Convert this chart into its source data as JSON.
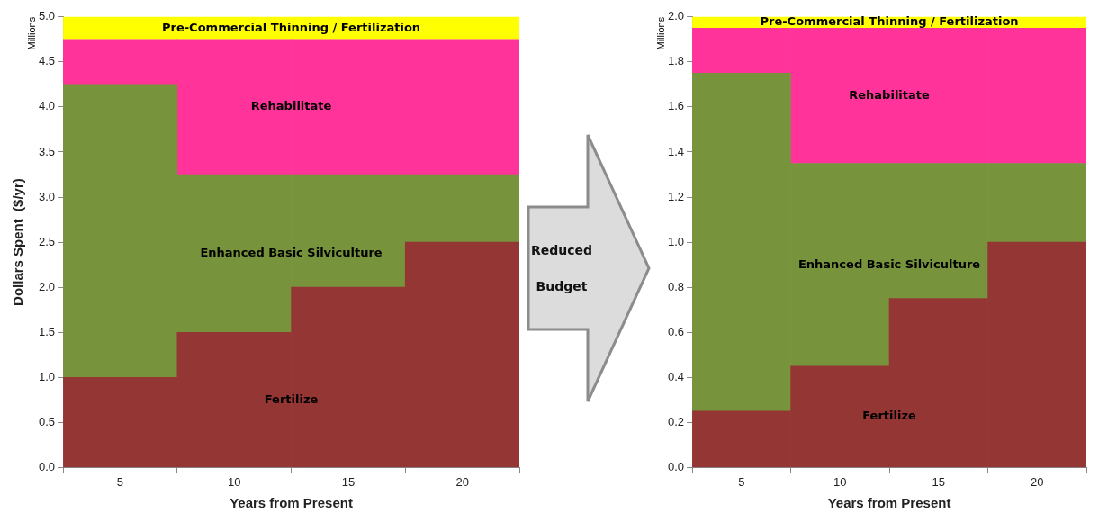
{
  "chart_data": [
    {
      "type": "bar",
      "stacked": true,
      "categories": [
        "5",
        "10",
        "15",
        "20"
      ],
      "xlabel": "Years from Present",
      "ylabel": "Dollars Spent  ($/yr)",
      "ylim": [
        0,
        5
      ],
      "yticks": [
        {
          "value": 0,
          "label": "0.0"
        },
        {
          "value": 0.5,
          "label": "0.5"
        },
        {
          "value": 1,
          "label": "1.0"
        },
        {
          "value": 1.5,
          "label": "1.5"
        },
        {
          "value": 2,
          "label": "2.0"
        },
        {
          "value": 2.5,
          "label": "2.5"
        },
        {
          "value": 3,
          "label": "3.0"
        },
        {
          "value": 3.5,
          "label": "3.5"
        },
        {
          "value": 4,
          "label": "4.0"
        },
        {
          "value": 4.5,
          "label": "4.5"
        },
        {
          "value": 5,
          "label": "5.0"
        }
      ],
      "grid": false,
      "legend": false,
      "annotations": [
        "Millions"
      ],
      "series": [
        {
          "name": "Fertilize",
          "color": "#943634",
          "values": [
            1.0,
            1.5,
            2.0,
            2.5
          ]
        },
        {
          "name": "Enhanced Basic Silviculture",
          "color": "#77933c",
          "values": [
            3.25,
            1.75,
            1.25,
            0.75
          ]
        },
        {
          "name": "Rehabilitate",
          "color": "#ff3399",
          "values": [
            0.5,
            1.5,
            1.5,
            1.5
          ]
        }
      ],
      "bands": [
        {
          "axis": "y",
          "from": 4.75,
          "to": 5,
          "label": "Pre-Commercial Thinning / Fertilization",
          "color": "#ffff00"
        }
      ]
    },
    {
      "type": "other",
      "annotations": [
        "Reduced Budget"
      ]
    },
    {
      "type": "bar",
      "stacked": true,
      "categories": [
        "5",
        "10",
        "15",
        "20"
      ],
      "xlabel": "Years from Present",
      "ylim": [
        0,
        2
      ],
      "yticks": [
        {
          "value": 0,
          "label": "0.0"
        },
        {
          "value": 0.2,
          "label": "0.2"
        },
        {
          "value": 0.4,
          "label": "0.4"
        },
        {
          "value": 0.6,
          "label": "0.6"
        },
        {
          "value": 0.8,
          "label": "0.8"
        },
        {
          "value": 1,
          "label": "1.0"
        },
        {
          "value": 1.2,
          "label": "1.2"
        },
        {
          "value": 1.4,
          "label": "1.4"
        },
        {
          "value": 1.6,
          "label": "1.6"
        },
        {
          "value": 1.8,
          "label": "1.8"
        },
        {
          "value": 2,
          "label": "2.0"
        }
      ],
      "grid": false,
      "legend": false,
      "annotations": [
        "Millions"
      ],
      "series": [
        {
          "name": "Fertilize",
          "color": "#943634",
          "values": [
            0.25,
            0.45,
            0.75,
            1.0
          ]
        },
        {
          "name": "Enhanced Basic Silviculture",
          "color": "#77933c",
          "values": [
            1.5,
            0.9,
            0.6,
            0.35
          ]
        },
        {
          "name": "Rehabilitate",
          "color": "#ff3399",
          "values": [
            0.2,
            0.6,
            0.6,
            0.6
          ]
        }
      ],
      "bands": [
        {
          "axis": "y",
          "from": 1.95,
          "to": 2,
          "label": "Pre-Commercial Thinning / Fertilization",
          "color": "#ffff00"
        }
      ]
    }
  ]
}
